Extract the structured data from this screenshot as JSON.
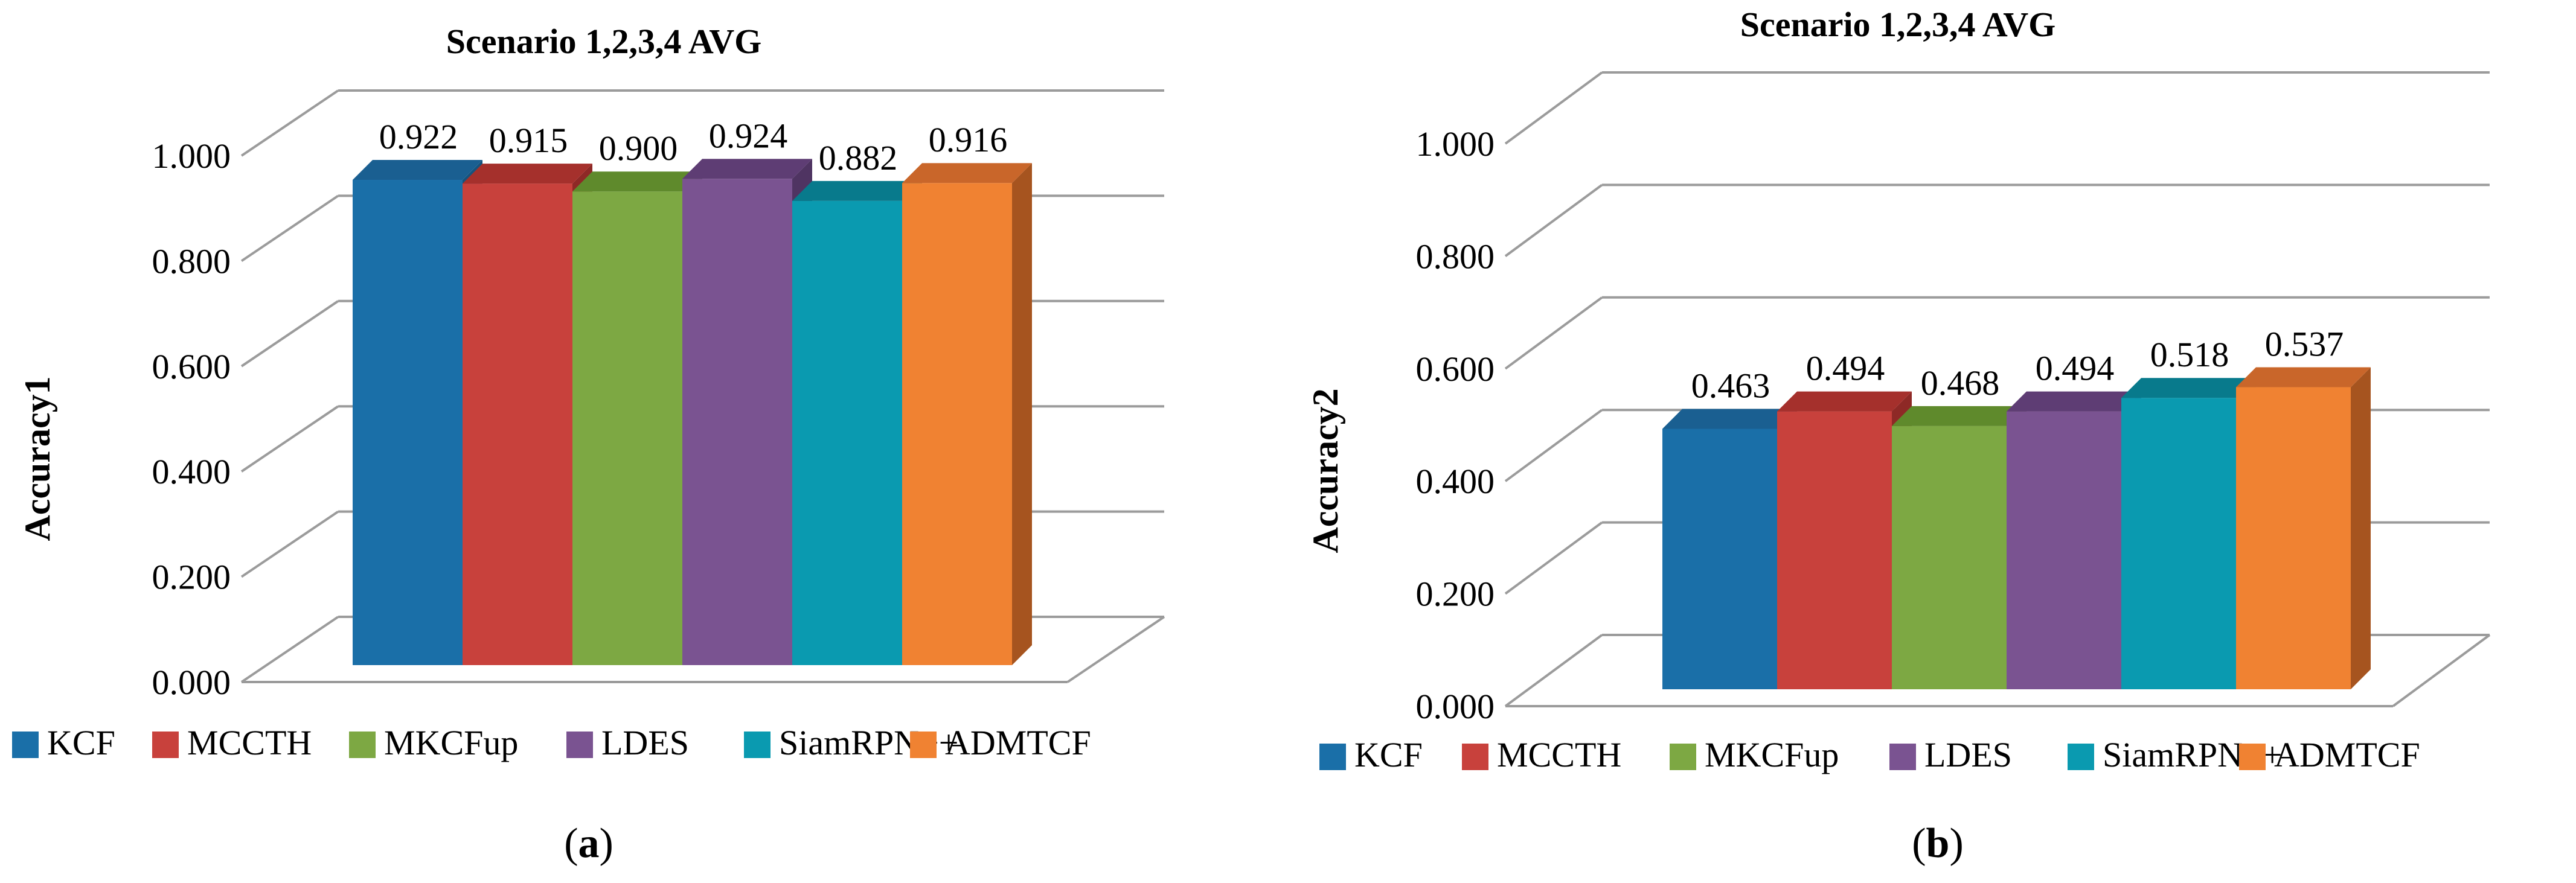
{
  "chart_data": [
    {
      "type": "bar",
      "id": "a",
      "title": "Scenario 1,2,3,4 AVG",
      "xlabel": "",
      "ylabel": "Accuracy1",
      "ylim": [
        0,
        1
      ],
      "yticks": [
        "0.000",
        "0.200",
        "0.400",
        "0.600",
        "0.800",
        "1.000"
      ],
      "categories": [
        "KCF",
        "MCCTH",
        "MKCFup",
        "LDES",
        "SiamRPN++",
        "ADMTCF"
      ],
      "values": [
        0.922,
        0.915,
        0.9,
        0.924,
        0.882,
        0.916
      ],
      "value_labels": [
        "0.922",
        "0.915",
        "0.900",
        "0.924",
        "0.882",
        "0.916"
      ],
      "legend_position": "bottom",
      "caption": {
        "open": "(",
        "letter": "a",
        "close": ")"
      }
    },
    {
      "type": "bar",
      "id": "b",
      "title": "Scenario 1,2,3,4 AVG",
      "xlabel": "",
      "ylabel": "Accuracy2",
      "ylim": [
        0,
        1
      ],
      "yticks": [
        "0.000",
        "0.200",
        "0.400",
        "0.600",
        "0.800",
        "1.000"
      ],
      "categories": [
        "KCF",
        "MCCTH",
        "MKCFup",
        "LDES",
        "SiamRPN++",
        "ADMTCF"
      ],
      "values": [
        0.463,
        0.494,
        0.468,
        0.494,
        0.518,
        0.537
      ],
      "value_labels": [
        "0.463",
        "0.494",
        "0.468",
        "0.494",
        "0.518",
        "0.537"
      ],
      "legend_position": "bottom",
      "caption": {
        "open": "(",
        "letter": "b",
        "close": ")"
      }
    }
  ],
  "colors": {
    "series_front": [
      "#1a6fa8",
      "#c8413c",
      "#7da843",
      "#7a5391",
      "#0a9ab0",
      "#f08232"
    ],
    "series_top": [
      "#1a5f91",
      "#a5302c",
      "#5f8a2c",
      "#5e3d74",
      "#087a8c",
      "#c9662a"
    ],
    "series_side": [
      "#15537e",
      "#8e2926",
      "#516f29",
      "#4f3462",
      "#06697a",
      "#a6541f"
    ],
    "grid": "#9b9b9b"
  }
}
